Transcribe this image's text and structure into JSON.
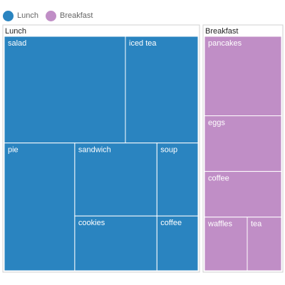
{
  "chart_data": {
    "type": "treemap",
    "legend": {
      "placement": "top-left",
      "items": [
        {
          "label": "Lunch",
          "color": "#2a84c0"
        },
        {
          "label": "Breakfast",
          "color": "#c08ec6"
        }
      ]
    },
    "groups": [
      {
        "name": "Lunch",
        "color": "#2a84c0",
        "items": [
          {
            "label": "salad",
            "value": 10
          },
          {
            "label": "iced tea",
            "value": 6
          },
          {
            "label": "pie",
            "value": 6
          },
          {
            "label": "sandwich",
            "value": 4
          },
          {
            "label": "cookies",
            "value": 3
          },
          {
            "label": "soup",
            "value": 2
          },
          {
            "label": "coffee",
            "value": 1.5
          }
        ]
      },
      {
        "name": "Breakfast",
        "color": "#c08ec6",
        "items": [
          {
            "label": "pancakes",
            "value": 4
          },
          {
            "label": "eggs",
            "value": 2.8
          },
          {
            "label": "coffee",
            "value": 2.3
          },
          {
            "label": "waffles",
            "value": 1.5
          },
          {
            "label": "tea",
            "value": 1.2
          }
        ]
      }
    ]
  }
}
